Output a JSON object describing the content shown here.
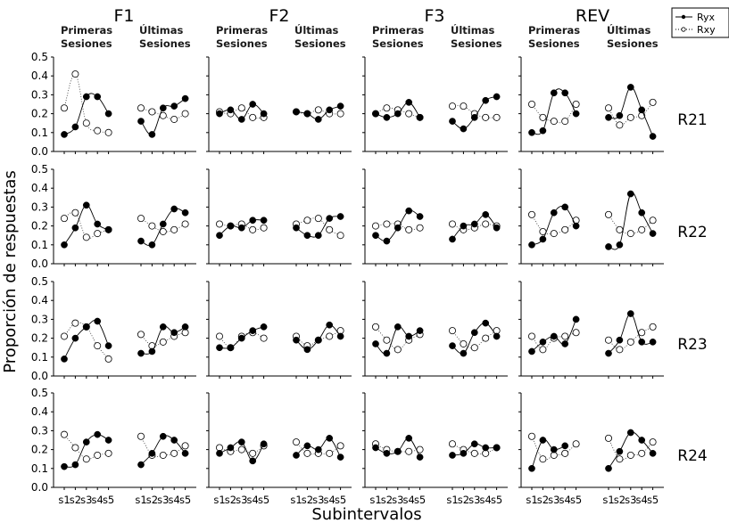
{
  "chart_data": {
    "type": "line",
    "title": "",
    "xlabel": "Subintervalos",
    "ylabel": "Proporción de respuestas",
    "ylim": [
      0,
      0.5
    ],
    "yticks": [
      "0.0",
      "0.1",
      "0.2",
      "0.3",
      "0.4",
      "0.5"
    ],
    "x": [
      "s1",
      "s2",
      "s3",
      "s4",
      "s5"
    ],
    "grid": false,
    "legend": {
      "position": "top-right",
      "entries": [
        {
          "name": "Ryx",
          "marker": "filled-circle",
          "line": "solid"
        },
        {
          "name": "Rxy",
          "marker": "open-circle",
          "line": "dotted"
        }
      ]
    },
    "columns": [
      "F1",
      "F2",
      "F3",
      "REV"
    ],
    "phases": [
      {
        "line1": "Primeras",
        "line2": "Sesiones"
      },
      {
        "line1": "Últimas",
        "line2": "Sesiones"
      }
    ],
    "rows": [
      "R21",
      "R22",
      "R23",
      "R24"
    ],
    "panels": [
      {
        "row": "R21",
        "column": "F1",
        "phase": "Primeras Sesiones",
        "series": [
          {
            "name": "Ryx",
            "values": [
              0.09,
              0.13,
              0.29,
              0.29,
              0.2
            ]
          },
          {
            "name": "Rxy",
            "values": [
              0.23,
              0.41,
              0.15,
              0.11,
              0.1
            ]
          }
        ]
      },
      {
        "row": "R21",
        "column": "F1",
        "phase": "Últimas Sesiones",
        "series": [
          {
            "name": "Ryx",
            "values": [
              0.16,
              0.09,
              0.23,
              0.24,
              0.28
            ]
          },
          {
            "name": "Rxy",
            "values": [
              0.23,
              0.21,
              0.19,
              0.17,
              0.2
            ]
          }
        ]
      },
      {
        "row": "R21",
        "column": "F2",
        "phase": "Primeras Sesiones",
        "series": [
          {
            "name": "Ryx",
            "values": [
              0.2,
              0.22,
              0.17,
              0.25,
              0.2
            ]
          },
          {
            "name": "Rxy",
            "values": [
              0.21,
              0.2,
              0.23,
              0.18,
              0.18
            ]
          }
        ]
      },
      {
        "row": "R21",
        "column": "F2",
        "phase": "Últimas Sesiones",
        "series": [
          {
            "name": "Ryx",
            "values": [
              0.21,
              0.2,
              0.17,
              0.22,
              0.24
            ]
          },
          {
            "name": "Rxy",
            "values": [
              0.21,
              0.2,
              0.22,
              0.2,
              0.2
            ]
          }
        ]
      },
      {
        "row": "R21",
        "column": "F3",
        "phase": "Primeras Sesiones",
        "series": [
          {
            "name": "Ryx",
            "values": [
              0.2,
              0.18,
              0.2,
              0.26,
              0.18
            ]
          },
          {
            "name": "Rxy",
            "values": [
              0.2,
              0.23,
              0.22,
              0.2,
              0.18
            ]
          }
        ]
      },
      {
        "row": "R21",
        "column": "F3",
        "phase": "Últimas Sesiones",
        "series": [
          {
            "name": "Ryx",
            "values": [
              0.16,
              0.12,
              0.18,
              0.27,
              0.29
            ]
          },
          {
            "name": "Rxy",
            "values": [
              0.24,
              0.24,
              0.2,
              0.18,
              0.18
            ]
          }
        ]
      },
      {
        "row": "R21",
        "column": "REV",
        "phase": "Primeras Sesiones",
        "series": [
          {
            "name": "Ryx",
            "values": [
              0.1,
              0.11,
              0.31,
              0.31,
              0.2
            ]
          },
          {
            "name": "Rxy",
            "values": [
              0.25,
              0.18,
              0.16,
              0.16,
              0.25
            ]
          }
        ]
      },
      {
        "row": "R21",
        "column": "REV",
        "phase": "Últimas Sesiones",
        "series": [
          {
            "name": "Ryx",
            "values": [
              0.18,
              0.19,
              0.34,
              0.22,
              0.08
            ]
          },
          {
            "name": "Rxy",
            "values": [
              0.23,
              0.14,
              0.18,
              0.19,
              0.26
            ]
          }
        ]
      },
      {
        "row": "R22",
        "column": "F1",
        "phase": "Primeras Sesiones",
        "series": [
          {
            "name": "Ryx",
            "values": [
              0.1,
              0.19,
              0.31,
              0.21,
              0.18
            ]
          },
          {
            "name": "Rxy",
            "values": [
              0.24,
              0.27,
              0.14,
              0.16,
              0.18
            ]
          }
        ]
      },
      {
        "row": "R22",
        "column": "F1",
        "phase": "Últimas Sesiones",
        "series": [
          {
            "name": "Ryx",
            "values": [
              0.12,
              0.1,
              0.21,
              0.29,
              0.27
            ]
          },
          {
            "name": "Rxy",
            "values": [
              0.24,
              0.2,
              0.17,
              0.18,
              0.21
            ]
          }
        ]
      },
      {
        "row": "R22",
        "column": "F2",
        "phase": "Primeras Sesiones",
        "series": [
          {
            "name": "Ryx",
            "values": [
              0.15,
              0.2,
              0.19,
              0.23,
              0.23
            ]
          },
          {
            "name": "Rxy",
            "values": [
              0.21,
              0.2,
              0.21,
              0.18,
              0.19
            ]
          }
        ]
      },
      {
        "row": "R22",
        "column": "F2",
        "phase": "Últimas Sesiones",
        "series": [
          {
            "name": "Ryx",
            "values": [
              0.19,
              0.15,
              0.15,
              0.24,
              0.25
            ]
          },
          {
            "name": "Rxy",
            "values": [
              0.21,
              0.23,
              0.24,
              0.18,
              0.15
            ]
          }
        ]
      },
      {
        "row": "R22",
        "column": "F3",
        "phase": "Primeras Sesiones",
        "series": [
          {
            "name": "Ryx",
            "values": [
              0.15,
              0.12,
              0.19,
              0.28,
              0.25
            ]
          },
          {
            "name": "Rxy",
            "values": [
              0.2,
              0.21,
              0.21,
              0.18,
              0.19
            ]
          }
        ]
      },
      {
        "row": "R22",
        "column": "F3",
        "phase": "Últimas Sesiones",
        "series": [
          {
            "name": "Ryx",
            "values": [
              0.13,
              0.2,
              0.21,
              0.26,
              0.19
            ]
          },
          {
            "name": "Rxy",
            "values": [
              0.21,
              0.18,
              0.19,
              0.21,
              0.2
            ]
          }
        ]
      },
      {
        "row": "R22",
        "column": "REV",
        "phase": "Primeras Sesiones",
        "series": [
          {
            "name": "Ryx",
            "values": [
              0.1,
              0.13,
              0.27,
              0.3,
              0.2
            ]
          },
          {
            "name": "Rxy",
            "values": [
              0.26,
              0.17,
              0.16,
              0.18,
              0.23
            ]
          }
        ]
      },
      {
        "row": "R22",
        "column": "REV",
        "phase": "Últimas Sesiones",
        "series": [
          {
            "name": "Ryx",
            "values": [
              0.09,
              0.1,
              0.37,
              0.27,
              0.16
            ]
          },
          {
            "name": "Rxy",
            "values": [
              0.26,
              0.18,
              0.16,
              0.18,
              0.23
            ]
          }
        ]
      },
      {
        "row": "R23",
        "column": "F1",
        "phase": "Primeras Sesiones",
        "series": [
          {
            "name": "Ryx",
            "values": [
              0.09,
              0.2,
              0.26,
              0.29,
              0.16
            ]
          },
          {
            "name": "Rxy",
            "values": [
              0.21,
              0.28,
              0.26,
              0.16,
              0.09
            ]
          }
        ]
      },
      {
        "row": "R23",
        "column": "F1",
        "phase": "Últimas Sesiones",
        "series": [
          {
            "name": "Ryx",
            "values": [
              0.12,
              0.13,
              0.26,
              0.23,
              0.26
            ]
          },
          {
            "name": "Rxy",
            "values": [
              0.22,
              0.16,
              0.18,
              0.21,
              0.23
            ]
          }
        ]
      },
      {
        "row": "R23",
        "column": "F2",
        "phase": "Primeras Sesiones",
        "series": [
          {
            "name": "Ryx",
            "values": [
              0.15,
              0.15,
              0.2,
              0.24,
              0.26
            ]
          },
          {
            "name": "Rxy",
            "values": [
              0.21,
              0.15,
              0.21,
              0.23,
              0.2
            ]
          }
        ]
      },
      {
        "row": "R23",
        "column": "F2",
        "phase": "Últimas Sesiones",
        "series": [
          {
            "name": "Ryx",
            "values": [
              0.19,
              0.14,
              0.19,
              0.27,
              0.21
            ]
          },
          {
            "name": "Rxy",
            "values": [
              0.21,
              0.16,
              0.19,
              0.21,
              0.24
            ]
          }
        ]
      },
      {
        "row": "R23",
        "column": "F3",
        "phase": "Primeras Sesiones",
        "series": [
          {
            "name": "Ryx",
            "values": [
              0.17,
              0.12,
              0.26,
              0.21,
              0.24
            ]
          },
          {
            "name": "Rxy",
            "values": [
              0.26,
              0.19,
              0.14,
              0.19,
              0.22
            ]
          }
        ]
      },
      {
        "row": "R23",
        "column": "F3",
        "phase": "Últimas Sesiones",
        "series": [
          {
            "name": "Ryx",
            "values": [
              0.16,
              0.12,
              0.23,
              0.28,
              0.21
            ]
          },
          {
            "name": "Rxy",
            "values": [
              0.24,
              0.17,
              0.15,
              0.2,
              0.24
            ]
          }
        ]
      },
      {
        "row": "R23",
        "column": "REV",
        "phase": "Primeras Sesiones",
        "series": [
          {
            "name": "Ryx",
            "values": [
              0.13,
              0.18,
              0.21,
              0.17,
              0.3
            ]
          },
          {
            "name": "Rxy",
            "values": [
              0.21,
              0.14,
              0.2,
              0.21,
              0.23
            ]
          }
        ]
      },
      {
        "row": "R23",
        "column": "REV",
        "phase": "Últimas Sesiones",
        "series": [
          {
            "name": "Ryx",
            "values": [
              0.12,
              0.19,
              0.33,
              0.18,
              0.18
            ]
          },
          {
            "name": "Rxy",
            "values": [
              0.19,
              0.14,
              0.18,
              0.23,
              0.26
            ]
          }
        ]
      },
      {
        "row": "R24",
        "column": "F1",
        "phase": "Primeras Sesiones",
        "series": [
          {
            "name": "Ryx",
            "values": [
              0.11,
              0.12,
              0.24,
              0.28,
              0.25
            ]
          },
          {
            "name": "Rxy",
            "values": [
              0.28,
              0.21,
              0.15,
              0.17,
              0.18
            ]
          }
        ]
      },
      {
        "row": "R24",
        "column": "F1",
        "phase": "Últimas Sesiones",
        "series": [
          {
            "name": "Ryx",
            "values": [
              0.12,
              0.18,
              0.27,
              0.25,
              0.18
            ]
          },
          {
            "name": "Rxy",
            "values": [
              0.27,
              0.17,
              0.17,
              0.18,
              0.22
            ]
          }
        ]
      },
      {
        "row": "R24",
        "column": "F2",
        "phase": "Primeras Sesiones",
        "series": [
          {
            "name": "Ryx",
            "values": [
              0.18,
              0.21,
              0.24,
              0.14,
              0.23
            ]
          },
          {
            "name": "Rxy",
            "values": [
              0.21,
              0.19,
              0.2,
              0.18,
              0.22
            ]
          }
        ]
      },
      {
        "row": "R24",
        "column": "F2",
        "phase": "Últimas Sesiones",
        "series": [
          {
            "name": "Ryx",
            "values": [
              0.17,
              0.22,
              0.2,
              0.26,
              0.16
            ]
          },
          {
            "name": "Rxy",
            "values": [
              0.24,
              0.18,
              0.18,
              0.18,
              0.22
            ]
          }
        ]
      },
      {
        "row": "R24",
        "column": "F3",
        "phase": "Primeras Sesiones",
        "series": [
          {
            "name": "Ryx",
            "values": [
              0.21,
              0.18,
              0.19,
              0.26,
              0.16
            ]
          },
          {
            "name": "Rxy",
            "values": [
              0.23,
              0.2,
              0.19,
              0.19,
              0.2
            ]
          }
        ]
      },
      {
        "row": "R24",
        "column": "F3",
        "phase": "Últimas Sesiones",
        "series": [
          {
            "name": "Ryx",
            "values": [
              0.17,
              0.18,
              0.23,
              0.21,
              0.21
            ]
          },
          {
            "name": "Rxy",
            "values": [
              0.23,
              0.2,
              0.18,
              0.18,
              0.21
            ]
          }
        ]
      },
      {
        "row": "R24",
        "column": "REV",
        "phase": "Primeras Sesiones",
        "series": [
          {
            "name": "Ryx",
            "values": [
              0.1,
              0.25,
              0.2,
              0.22,
              null
            ]
          },
          {
            "name": "Rxy",
            "values": [
              0.27,
              0.15,
              0.17,
              0.18,
              0.23
            ]
          }
        ]
      },
      {
        "row": "R24",
        "column": "REV",
        "phase": "Últimas Sesiones",
        "series": [
          {
            "name": "Ryx",
            "values": [
              0.1,
              0.19,
              0.29,
              0.25,
              0.18
            ]
          },
          {
            "name": "Rxy",
            "values": [
              0.26,
              0.15,
              0.17,
              0.18,
              0.24
            ]
          }
        ]
      }
    ]
  }
}
